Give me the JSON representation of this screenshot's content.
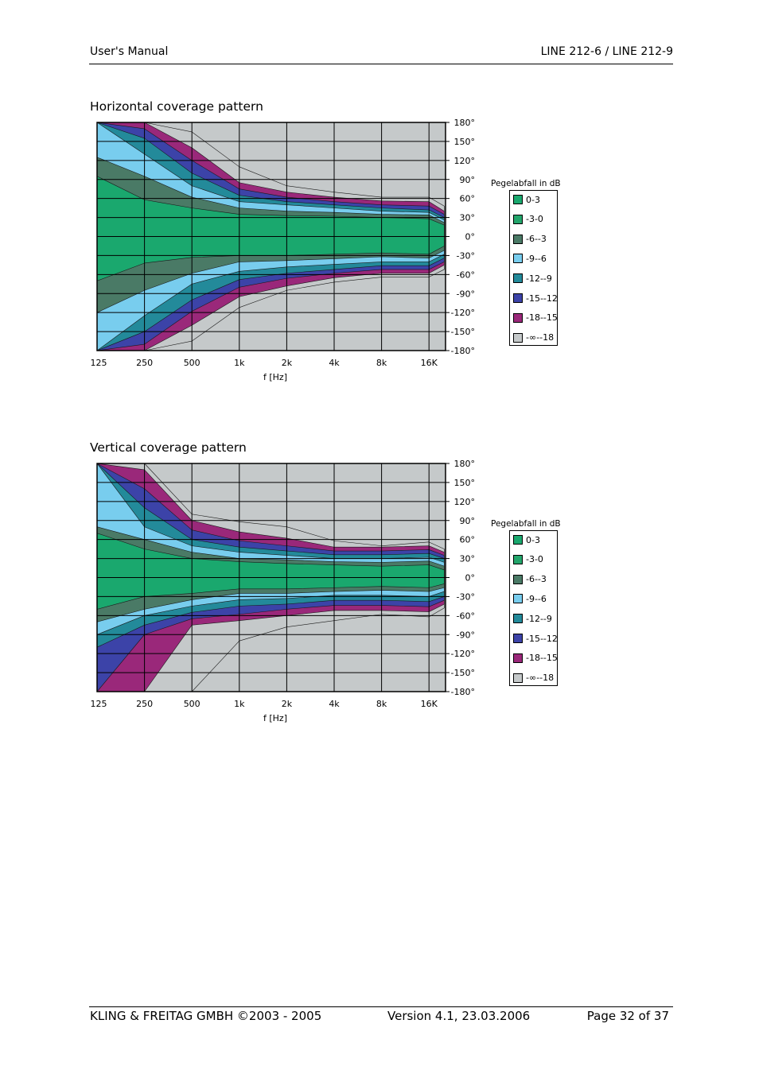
{
  "header": {
    "left": "User's Manual",
    "right": "LINE 212-6 / LINE 212-9"
  },
  "footer": {
    "left": "KLING & FREITAG GMBH ©2003 - 2005",
    "center": "Version 4.1, 23.03.2006",
    "right": "Page 32 of 37"
  },
  "colors": {
    "c0": "#1aa86e",
    "c1": "#23a56b",
    "c2": "#4a7a66",
    "c3": "#78cdee",
    "c4": "#238a9a",
    "c5": "#3c43a8",
    "c6": "#9a287a",
    "c7": "#c5c9ca"
  },
  "chart_data": [
    {
      "type": "heatmap",
      "title": "Horizontal coverage pattern",
      "xlabel": "f [Hz]",
      "x_ticks": [
        "125",
        "250",
        "500",
        "1k",
        "2k",
        "4k",
        "8k",
        "16K"
      ],
      "y_ticks": [
        "180°",
        "150°",
        "120°",
        "90°",
        "60°",
        "30°",
        "0°",
        "-30°",
        "-60°",
        "-90°",
        "-120°",
        "-150°",
        "-180°"
      ],
      "ylim": [
        -180,
        180
      ],
      "legend_title": "Pegelabfall in dB",
      "legend": [
        "0-3",
        "-3-0",
        "-6--3",
        "-9--6",
        "-12--9",
        "-15--12",
        "-18--15",
        "-∞--18"
      ],
      "x_freq": [
        125,
        250,
        500,
        1000,
        2000,
        4000,
        8000,
        16000,
        20000
      ],
      "upper_boundaries_deg": [
        [
          95,
          58,
          45,
          35,
          33,
          32,
          30,
          28,
          18
        ],
        [
          125,
          95,
          62,
          45,
          40,
          38,
          35,
          34,
          22
        ],
        [
          180,
          130,
          80,
          55,
          50,
          45,
          40,
          38,
          26
        ],
        [
          180,
          155,
          100,
          65,
          55,
          50,
          45,
          42,
          30
        ],
        [
          180,
          170,
          120,
          75,
          62,
          55,
          50,
          48,
          35
        ],
        [
          180,
          180,
          140,
          85,
          70,
          62,
          56,
          55,
          40
        ],
        [
          180,
          180,
          165,
          110,
          80,
          70,
          62,
          62,
          48
        ]
      ],
      "lower_boundaries_deg": [
        [
          -70,
          -42,
          -33,
          -30,
          -30,
          -28,
          -26,
          -28,
          -15
        ],
        [
          -120,
          -85,
          -58,
          -40,
          -38,
          -35,
          -32,
          -34,
          -22
        ],
        [
          -180,
          -125,
          -75,
          -55,
          -48,
          -44,
          -40,
          -40,
          -28
        ],
        [
          -180,
          -150,
          -100,
          -68,
          -58,
          -52,
          -46,
          -46,
          -34
        ],
        [
          -180,
          -170,
          -118,
          -80,
          -66,
          -58,
          -52,
          -52,
          -40
        ],
        [
          -180,
          -180,
          -140,
          -95,
          -78,
          -65,
          -58,
          -58,
          -45
        ],
        [
          -180,
          -180,
          -165,
          -112,
          -85,
          -72,
          -64,
          -64,
          -52
        ]
      ]
    },
    {
      "type": "heatmap",
      "title": "Vertical coverage pattern",
      "xlabel": "f [Hz]",
      "x_ticks": [
        "125",
        "250",
        "500",
        "1k",
        "2k",
        "4k",
        "8k",
        "16K"
      ],
      "y_ticks": [
        "180°",
        "150°",
        "120°",
        "90°",
        "60°",
        "30°",
        "0°",
        "-30°",
        "-60°",
        "-90°",
        "-120°",
        "-150°",
        "-180°"
      ],
      "ylim": [
        -180,
        180
      ],
      "legend_title": "Pegelabfall in dB",
      "legend": [
        "0-3",
        "-3-0",
        "-6--3",
        "-9--6",
        "-12--9",
        "-15--12",
        "-18--15",
        "-∞--18"
      ],
      "x_freq": [
        125,
        250,
        500,
        1000,
        2000,
        4000,
        8000,
        16000,
        20000
      ],
      "upper_boundaries_deg": [
        [
          70,
          45,
          30,
          25,
          22,
          20,
          18,
          20,
          12
        ],
        [
          80,
          60,
          40,
          30,
          28,
          25,
          24,
          26,
          18
        ],
        [
          180,
          80,
          50,
          40,
          35,
          30,
          30,
          32,
          24
        ],
        [
          180,
          110,
          60,
          48,
          42,
          36,
          36,
          38,
          30
        ],
        [
          180,
          140,
          75,
          58,
          50,
          42,
          42,
          44,
          35
        ],
        [
          180,
          170,
          90,
          72,
          62,
          48,
          48,
          50,
          40
        ],
        [
          180,
          180,
          100,
          88,
          80,
          58,
          50,
          56,
          45
        ]
      ],
      "lower_boundaries_deg": [
        [
          -50,
          -30,
          -25,
          -18,
          -18,
          -16,
          -14,
          -16,
          -10
        ],
        [
          -70,
          -50,
          -35,
          -25,
          -25,
          -22,
          -20,
          -22,
          -16
        ],
        [
          -90,
          -60,
          -45,
          -35,
          -33,
          -28,
          -28,
          -30,
          -22
        ],
        [
          -110,
          -75,
          -55,
          -45,
          -42,
          -36,
          -36,
          -38,
          -30
        ],
        [
          -180,
          -90,
          -65,
          -58,
          -50,
          -44,
          -44,
          -46,
          -36
        ],
        [
          -180,
          -180,
          -75,
          -68,
          -60,
          -52,
          -52,
          -54,
          -42
        ],
        [
          -180,
          -180,
          -180,
          -100,
          -78,
          -68,
          -58,
          -62,
          -48
        ]
      ]
    }
  ]
}
